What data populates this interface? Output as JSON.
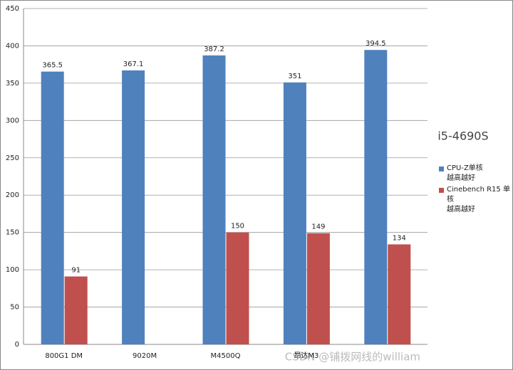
{
  "chart_data": {
    "type": "bar",
    "title": "i5-4690S",
    "categories": [
      "800G1 DM",
      "9020M",
      "M4500Q",
      "昂达M3",
      null
    ],
    "series": [
      {
        "name": "CPU-Z单核\n越高越好",
        "color": "#4f81bd",
        "values": [
          365.5,
          367.1,
          387.2,
          351,
          394.5
        ]
      },
      {
        "name": "Cinebench R15 单核\n越高越好",
        "color": "#c0504d",
        "values": [
          91,
          null,
          150,
          149,
          134
        ]
      }
    ],
    "ylim": [
      0,
      450
    ],
    "yticks": [
      0,
      50,
      100,
      150,
      200,
      250,
      300,
      350,
      400,
      450
    ],
    "grid": true,
    "watermark": "CSDN @铺拨网线的william"
  }
}
